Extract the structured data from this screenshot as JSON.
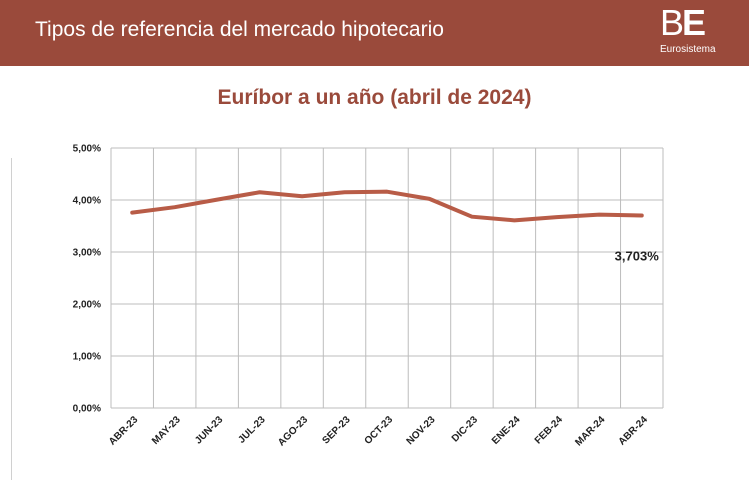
{
  "header": {
    "title": "Tipos de referencia del mercado hipotecario",
    "logo_letters_b": "B",
    "logo_letters_e": "E",
    "logo_subtitle": "Eurosistema"
  },
  "colors": {
    "brand": "#9a4a3b",
    "series_line": "#b85c47",
    "grid": "#bdbdbd"
  },
  "chart_data": {
    "type": "line",
    "title": "Euríbor a un año (abril de 2024)",
    "categories": [
      "ABR-23",
      "MAY-23",
      "JUN-23",
      "JUL-23",
      "AGO-23",
      "SEP-23",
      "OCT-23",
      "NOV-23",
      "DIC-23",
      "ENE-24",
      "FEB-24",
      "MAR-24",
      "ABR-24"
    ],
    "series": [
      {
        "values": [
          3.757,
          3.862,
          4.007,
          4.149,
          4.073,
          4.149,
          4.16,
          4.022,
          3.679,
          3.609,
          3.671,
          3.718,
          3.703
        ]
      }
    ],
    "yticks": [
      "0,00%",
      "1,00%",
      "2,00%",
      "3,00%",
      "4,00%",
      "5,00%"
    ],
    "ylim": [
      0,
      5
    ],
    "grid": true,
    "annotation": "3,703%"
  }
}
